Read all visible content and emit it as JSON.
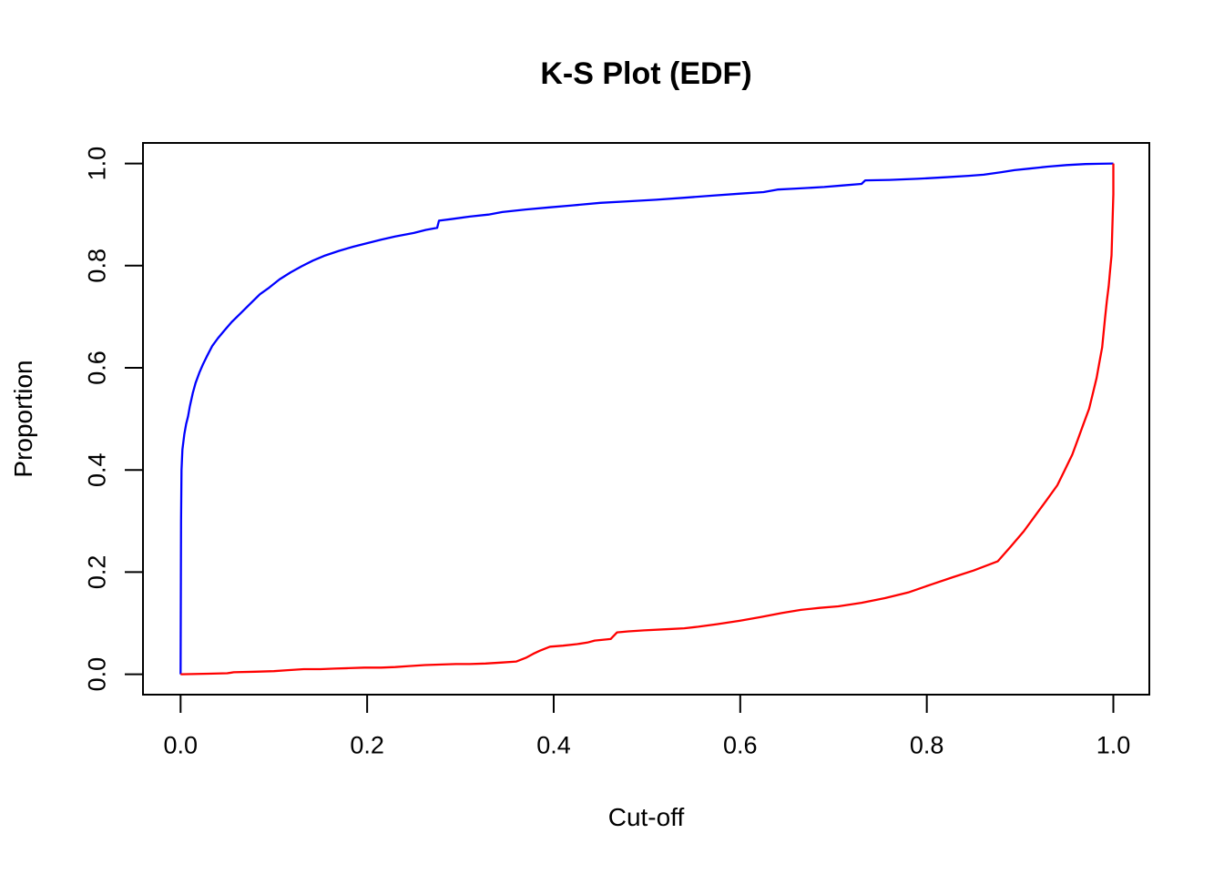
{
  "figure": {
    "background_color": "#ffffff",
    "axis_color": "#000000"
  },
  "chart_data": {
    "type": "line",
    "title": "K-S Plot (EDF)",
    "xlabel": "Cut-off",
    "ylabel": "Proportion",
    "xlim": [
      -0.04,
      1.04
    ],
    "ylim": [
      -0.04,
      1.04
    ],
    "grid": false,
    "legend": "none",
    "x_ticks": {
      "values": [
        0.0,
        0.2,
        0.4,
        0.6,
        0.8,
        1.0
      ],
      "labels": [
        "0.0",
        "0.2",
        "0.4",
        "0.6",
        "0.8",
        "1.0"
      ]
    },
    "y_ticks": {
      "values": [
        0.0,
        0.2,
        0.4,
        0.6,
        0.8,
        1.0
      ],
      "labels": [
        "0.0",
        "0.2",
        "0.4",
        "0.6",
        "0.8",
        "1.0"
      ]
    },
    "series": [
      {
        "name": "blue-edf",
        "color": "#0000ff",
        "x": [
          0.0,
          0.0005,
          0.001,
          0.002,
          0.004,
          0.006,
          0.008,
          0.01,
          0.013,
          0.016,
          0.02,
          0.024,
          0.028,
          0.034,
          0.04,
          0.047,
          0.055,
          0.065,
          0.075,
          0.085,
          0.095,
          0.106,
          0.118,
          0.13,
          0.142,
          0.155,
          0.17,
          0.185,
          0.2,
          0.215,
          0.23,
          0.25,
          0.263,
          0.275,
          0.277,
          0.29,
          0.31,
          0.33,
          0.345,
          0.37,
          0.395,
          0.42,
          0.45,
          0.48,
          0.51,
          0.54,
          0.57,
          0.6,
          0.625,
          0.64,
          0.66,
          0.69,
          0.71,
          0.73,
          0.734,
          0.76,
          0.79,
          0.82,
          0.845,
          0.861,
          0.88,
          0.894,
          0.91,
          0.93,
          0.95,
          0.97,
          0.985,
          1.0
        ],
        "y": [
          0.0,
          0.3,
          0.4,
          0.44,
          0.47,
          0.49,
          0.505,
          0.525,
          0.55,
          0.57,
          0.59,
          0.607,
          0.622,
          0.643,
          0.658,
          0.673,
          0.69,
          0.708,
          0.726,
          0.744,
          0.757,
          0.773,
          0.787,
          0.799,
          0.81,
          0.82,
          0.829,
          0.837,
          0.844,
          0.851,
          0.857,
          0.864,
          0.87,
          0.874,
          0.888,
          0.891,
          0.896,
          0.9,
          0.905,
          0.91,
          0.914,
          0.918,
          0.923,
          0.926,
          0.929,
          0.933,
          0.937,
          0.941,
          0.944,
          0.949,
          0.951,
          0.954,
          0.957,
          0.96,
          0.967,
          0.968,
          0.97,
          0.973,
          0.976,
          0.978,
          0.983,
          0.987,
          0.99,
          0.994,
          0.997,
          0.999,
          0.9995,
          1.0
        ]
      },
      {
        "name": "red-edf",
        "color": "#ff0000",
        "x": [
          0.0,
          0.03,
          0.05,
          0.057,
          0.08,
          0.1,
          0.115,
          0.132,
          0.15,
          0.165,
          0.18,
          0.197,
          0.215,
          0.23,
          0.245,
          0.262,
          0.28,
          0.295,
          0.31,
          0.327,
          0.345,
          0.36,
          0.37,
          0.378,
          0.385,
          0.396,
          0.41,
          0.425,
          0.436,
          0.444,
          0.455,
          0.461,
          0.468,
          0.48,
          0.497,
          0.52,
          0.54,
          0.555,
          0.575,
          0.6,
          0.622,
          0.645,
          0.665,
          0.685,
          0.705,
          0.73,
          0.755,
          0.78,
          0.805,
          0.828,
          0.85,
          0.876,
          0.89,
          0.904,
          0.916,
          0.928,
          0.94,
          0.948,
          0.956,
          0.962,
          0.968,
          0.974,
          0.978,
          0.982,
          0.985,
          0.988,
          0.991,
          0.993,
          0.995,
          0.9965,
          0.998,
          0.999,
          1.0,
          1.0
        ],
        "y": [
          0.0,
          0.001,
          0.002,
          0.004,
          0.005,
          0.006,
          0.008,
          0.01,
          0.01,
          0.011,
          0.012,
          0.013,
          0.013,
          0.014,
          0.016,
          0.018,
          0.019,
          0.02,
          0.02,
          0.021,
          0.023,
          0.025,
          0.032,
          0.04,
          0.046,
          0.054,
          0.056,
          0.059,
          0.062,
          0.066,
          0.068,
          0.069,
          0.082,
          0.084,
          0.086,
          0.088,
          0.09,
          0.093,
          0.098,
          0.105,
          0.112,
          0.12,
          0.126,
          0.13,
          0.133,
          0.14,
          0.149,
          0.16,
          0.176,
          0.19,
          0.203,
          0.221,
          0.25,
          0.28,
          0.31,
          0.34,
          0.37,
          0.4,
          0.43,
          0.46,
          0.49,
          0.52,
          0.55,
          0.58,
          0.61,
          0.64,
          0.696,
          0.73,
          0.76,
          0.79,
          0.82,
          0.88,
          0.94,
          1.0
        ]
      }
    ]
  }
}
